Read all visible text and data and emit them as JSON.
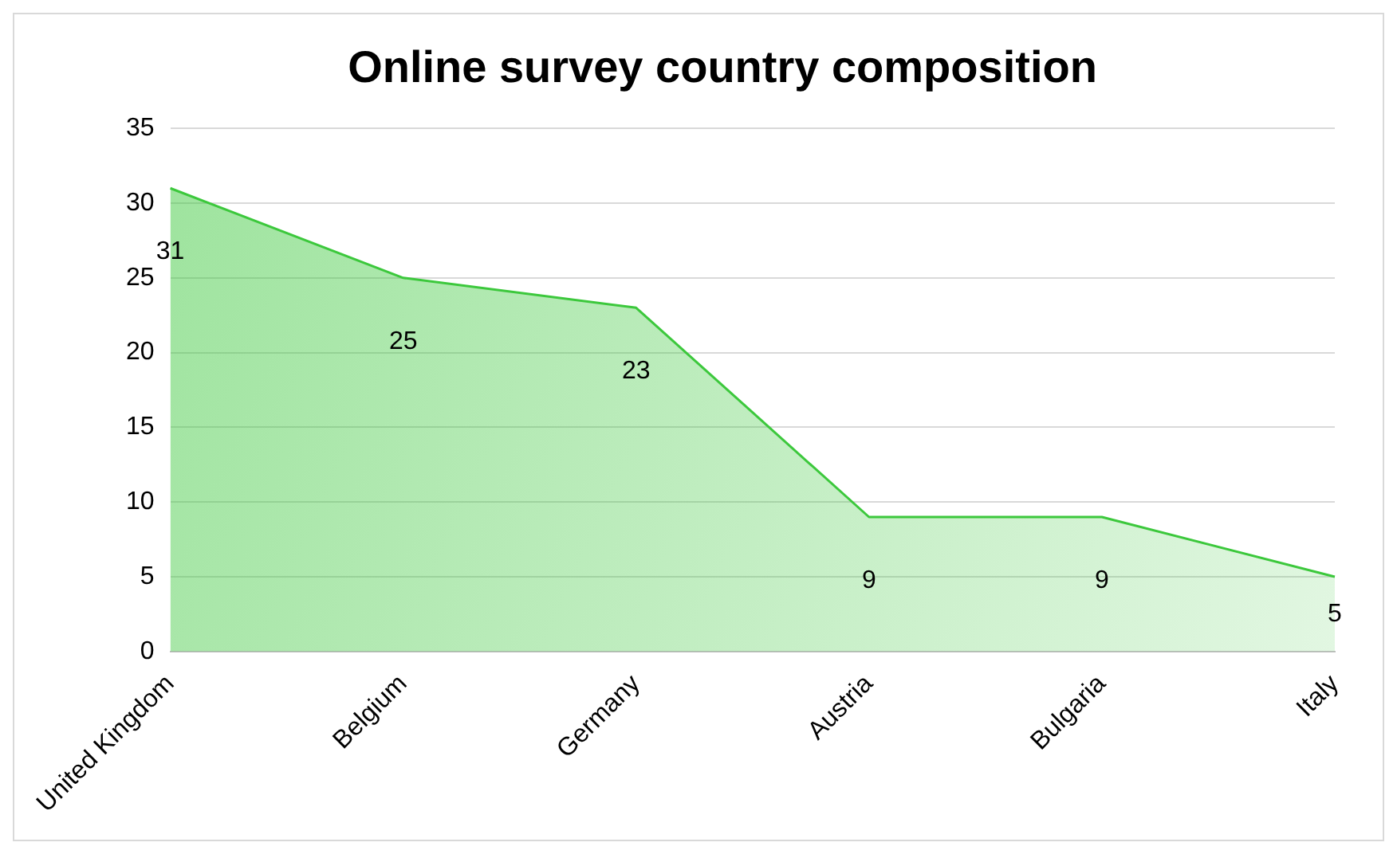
{
  "chart_data": {
    "type": "area",
    "title": "Online survey country composition",
    "categories": [
      "United Kingdom",
      "Belgium",
      "Germany",
      "Austria",
      "Bulgaria",
      "Italy"
    ],
    "series": [
      {
        "color": "#3cc83c",
        "values": [
          31,
          25,
          23,
          9,
          9,
          5
        ]
      }
    ],
    "ylim": [
      0,
      35
    ],
    "yticks": [
      0,
      5,
      10,
      15,
      20,
      25,
      30,
      35
    ],
    "grid": "y",
    "legend": false,
    "data_labels": true,
    "marker": "none"
  }
}
